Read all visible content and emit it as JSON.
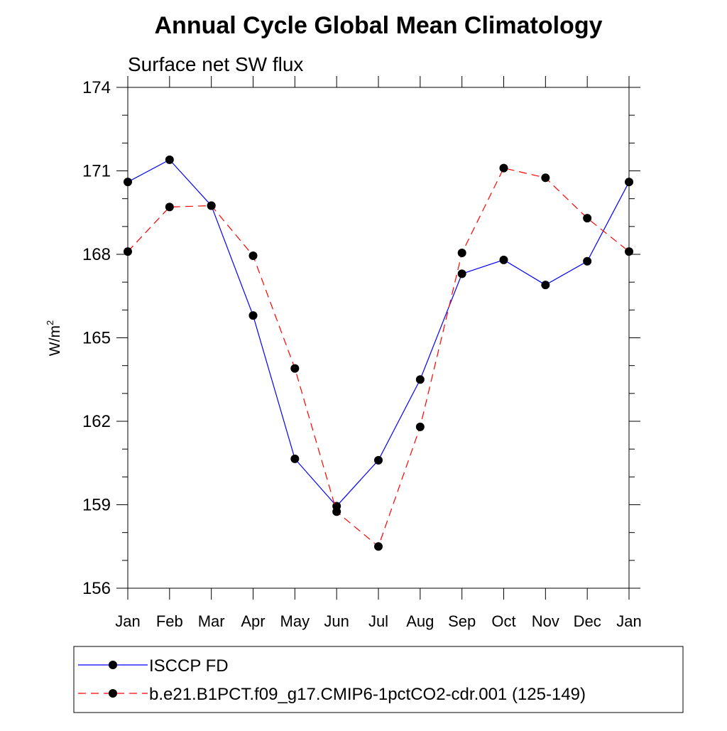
{
  "chart_data": {
    "type": "line",
    "title": "Annual Cycle Global Mean Climatology",
    "subtitle": "Surface net SW flux",
    "ylabel_base": "W/m",
    "ylabel_sup": "2",
    "xlabel": "",
    "ylim": [
      156,
      174
    ],
    "yticks": [
      156,
      159,
      162,
      165,
      168,
      171,
      174
    ],
    "categories": [
      "Jan",
      "Feb",
      "Mar",
      "Apr",
      "May",
      "Jun",
      "Jul",
      "Aug",
      "Sep",
      "Oct",
      "Nov",
      "Dec",
      "Jan"
    ],
    "grid": false,
    "legend_placement": "bottom",
    "series": [
      {
        "name": "ISCCP FD",
        "color": "#0000ff",
        "dash": "solid",
        "marker": "circle",
        "values": [
          170.6,
          171.4,
          169.75,
          165.8,
          160.65,
          158.95,
          160.6,
          163.5,
          167.3,
          167.8,
          166.9,
          167.75,
          170.6
        ]
      },
      {
        "name": "b.e21.B1PCT.f09_g17.CMIP6-1pctCO2-cdr.001 (125-149)",
        "color": "#ff0000",
        "dash": "dashed",
        "marker": "circle",
        "values": [
          168.1,
          169.7,
          169.75,
          167.95,
          163.9,
          158.75,
          157.5,
          161.8,
          168.05,
          171.1,
          170.75,
          169.3,
          168.1
        ]
      }
    ]
  }
}
